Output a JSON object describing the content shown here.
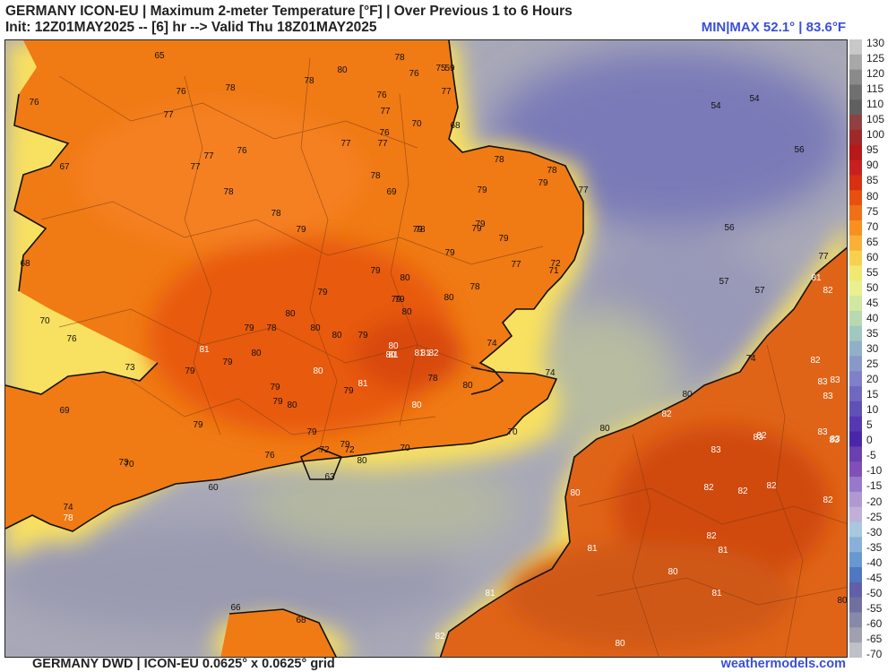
{
  "header": {
    "title_line": "GERMANY ICON-EU | Maximum 2-meter Temperature [°F] | Over Previous 1 to 6 Hours",
    "init_line": "Init: 12Z01MAY2025 -- [6] hr --> Valid Thu 18Z01MAY2025",
    "minmax": "MIN|MAX 52.1° | 83.6°F"
  },
  "footer": {
    "source": "GERMANY DWD | ICON-EU 0.0625° x 0.0625° grid",
    "site": "weathermodels.com"
  },
  "colorbar": {
    "ticks": [
      "130",
      "125",
      "120",
      "115",
      "110",
      "105",
      "100",
      "95",
      "90",
      "85",
      "80",
      "75",
      "70",
      "65",
      "60",
      "55",
      "50",
      "45",
      "40",
      "35",
      "30",
      "25",
      "20",
      "15",
      "10",
      "5",
      "0",
      "-5",
      "-10",
      "-15",
      "-20",
      "-25",
      "-30",
      "-35",
      "-40",
      "-45",
      "-50",
      "-55",
      "-60",
      "-65",
      "-70"
    ],
    "colors": [
      "#c8c8c8",
      "#a8a8a8",
      "#8a8a8a",
      "#707070",
      "#606060",
      "#904040",
      "#a02828",
      "#b81818",
      "#c82020",
      "#d83010",
      "#e85010",
      "#f07018",
      "#f89020",
      "#f8b038",
      "#f8d050",
      "#f0e870",
      "#e8f090",
      "#d0e8a0",
      "#b8d8b0",
      "#a0c8c0",
      "#90b0c8",
      "#8898c8",
      "#8080c8",
      "#7068c0",
      "#6050b8",
      "#5838b0",
      "#4828a8",
      "#6a3fb0",
      "#8050b8",
      "#9878c8",
      "#b098d0",
      "#c0b0d8",
      "#a8c8e0",
      "#88b0d8",
      "#6898d0",
      "#5078c0",
      "#6060a8",
      "#7070a0",
      "#8888a8",
      "#a0a0b0",
      "#c0c0c8"
    ]
  },
  "map_labels": [
    {
      "t": "65",
      "c": "d"
    },
    {
      "t": "80",
      "c": "d"
    },
    {
      "t": "78",
      "c": "d"
    },
    {
      "t": "75",
      "c": "d"
    },
    {
      "t": "59",
      "c": "d"
    },
    {
      "t": "76",
      "c": "d"
    },
    {
      "t": "76",
      "c": "d"
    },
    {
      "t": "78",
      "c": "d"
    },
    {
      "t": "78",
      "c": "d"
    },
    {
      "t": "76",
      "c": "d"
    },
    {
      "t": "77",
      "c": "d"
    },
    {
      "t": "77",
      "c": "d"
    },
    {
      "t": "77",
      "c": "d"
    },
    {
      "t": "70",
      "c": "d"
    },
    {
      "t": "68",
      "c": "d"
    },
    {
      "t": "77",
      "c": "d"
    },
    {
      "t": "77",
      "c": "d"
    },
    {
      "t": "77",
      "c": "d"
    },
    {
      "t": "76",
      "c": "d"
    },
    {
      "t": "76",
      "c": "d"
    },
    {
      "t": "77",
      "c": "d"
    },
    {
      "t": "78",
      "c": "d"
    },
    {
      "t": "78",
      "c": "d"
    },
    {
      "t": "78",
      "c": "d"
    },
    {
      "t": "79",
      "c": "d"
    },
    {
      "t": "79",
      "c": "d"
    },
    {
      "t": "78",
      "c": "d"
    },
    {
      "t": "69",
      "c": "d"
    },
    {
      "t": "77",
      "c": "d"
    },
    {
      "t": "78",
      "c": "d"
    },
    {
      "t": "79",
      "c": "d"
    },
    {
      "t": "79",
      "c": "d"
    },
    {
      "t": "78",
      "c": "d"
    },
    {
      "t": "79",
      "c": "d"
    },
    {
      "t": "79",
      "c": "d"
    },
    {
      "t": "79",
      "c": "d"
    },
    {
      "t": "79",
      "c": "d"
    },
    {
      "t": "78",
      "c": "d"
    },
    {
      "t": "79",
      "c": "d"
    },
    {
      "t": "77",
      "c": "d"
    },
    {
      "t": "72",
      "c": "d"
    },
    {
      "t": "71",
      "c": "d"
    },
    {
      "t": "68",
      "c": "d"
    },
    {
      "t": "79",
      "c": "d"
    },
    {
      "t": "80",
      "c": "d"
    },
    {
      "t": "80",
      "c": "d"
    },
    {
      "t": "79",
      "c": "d"
    },
    {
      "t": "80",
      "c": "d"
    },
    {
      "t": "79",
      "c": "d"
    },
    {
      "t": "78",
      "c": "d"
    },
    {
      "t": "80",
      "c": "d"
    },
    {
      "t": "80",
      "c": "d"
    },
    {
      "t": "79",
      "c": "d"
    },
    {
      "t": "80",
      "c": "w"
    },
    {
      "t": "80",
      "c": "w"
    },
    {
      "t": "80",
      "c": "d"
    },
    {
      "t": "79",
      "c": "d"
    },
    {
      "t": "81",
      "c": "w"
    },
    {
      "t": "82",
      "c": "w"
    },
    {
      "t": "81",
      "c": "w"
    },
    {
      "t": "81",
      "c": "w"
    },
    {
      "t": "74",
      "c": "d"
    },
    {
      "t": "70",
      "c": "d"
    },
    {
      "t": "76",
      "c": "d"
    },
    {
      "t": "81",
      "c": "w"
    },
    {
      "t": "79",
      "c": "d"
    },
    {
      "t": "80",
      "c": "d"
    },
    {
      "t": "69",
      "c": "d"
    },
    {
      "t": "73",
      "c": "d"
    },
    {
      "t": "79",
      "c": "d"
    },
    {
      "t": "80",
      "c": "w"
    },
    {
      "t": "79",
      "c": "d"
    },
    {
      "t": "81",
      "c": "w"
    },
    {
      "t": "78",
      "c": "d"
    },
    {
      "t": "80",
      "c": "d"
    },
    {
      "t": "74",
      "c": "d"
    },
    {
      "t": "79",
      "c": "d"
    },
    {
      "t": "79",
      "c": "d"
    },
    {
      "t": "80",
      "c": "d"
    },
    {
      "t": "79",
      "c": "d"
    },
    {
      "t": "80",
      "c": "w"
    },
    {
      "t": "79",
      "c": "d"
    },
    {
      "t": "79",
      "c": "d"
    },
    {
      "t": "70",
      "c": "d"
    },
    {
      "t": "70",
      "c": "d"
    },
    {
      "t": "72",
      "c": "d"
    },
    {
      "t": "72",
      "c": "d"
    },
    {
      "t": "76",
      "c": "d"
    },
    {
      "t": "80",
      "c": "d"
    },
    {
      "t": "73",
      "c": "d"
    },
    {
      "t": "70",
      "c": "d"
    },
    {
      "t": "63",
      "c": "d"
    },
    {
      "t": "60",
      "c": "d"
    },
    {
      "t": "74",
      "c": "d"
    },
    {
      "t": "78",
      "c": "w"
    },
    {
      "t": "54",
      "c": "d"
    },
    {
      "t": "54",
      "c": "d"
    },
    {
      "t": "56",
      "c": "d"
    },
    {
      "t": "56",
      "c": "d"
    },
    {
      "t": "57",
      "c": "d"
    },
    {
      "t": "57",
      "c": "d"
    },
    {
      "t": "77",
      "c": "d"
    },
    {
      "t": "81",
      "c": "w"
    },
    {
      "t": "82",
      "c": "w"
    },
    {
      "t": "74",
      "c": "d"
    },
    {
      "t": "82",
      "c": "w"
    },
    {
      "t": "83",
      "c": "w"
    },
    {
      "t": "83",
      "c": "w"
    },
    {
      "t": "83",
      "c": "w"
    },
    {
      "t": "80",
      "c": "d"
    },
    {
      "t": "82",
      "c": "w"
    },
    {
      "t": "80",
      "c": "d"
    },
    {
      "t": "83",
      "c": "w"
    },
    {
      "t": "82",
      "c": "w"
    },
    {
      "t": "83",
      "c": "w"
    },
    {
      "t": "83",
      "c": "w"
    },
    {
      "t": "83",
      "c": "w"
    },
    {
      "t": "83",
      "c": "w"
    },
    {
      "t": "82",
      "c": "w"
    },
    {
      "t": "82",
      "c": "w"
    },
    {
      "t": "82",
      "c": "w"
    },
    {
      "t": "82",
      "c": "w"
    },
    {
      "t": "80",
      "c": "w"
    },
    {
      "t": "81",
      "c": "w"
    },
    {
      "t": "82",
      "c": "w"
    },
    {
      "t": "81",
      "c": "w"
    },
    {
      "t": "80",
      "c": "w"
    },
    {
      "t": "81",
      "c": "w"
    },
    {
      "t": "81",
      "c": "w"
    },
    {
      "t": "80",
      "c": "d"
    },
    {
      "t": "80",
      "c": "w"
    },
    {
      "t": "82",
      "c": "w"
    },
    {
      "t": "66",
      "c": "d"
    },
    {
      "t": "68",
      "c": "d"
    },
    {
      "t": "76",
      "c": "d"
    },
    {
      "t": "67",
      "c": "d"
    },
    {
      "t": "68",
      "c": "d"
    }
  ]
}
